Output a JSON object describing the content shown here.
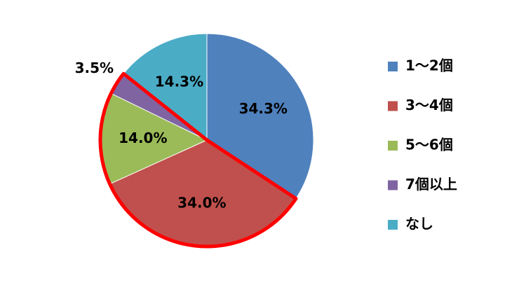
{
  "chart_data": {
    "type": "pie",
    "categories": [
      "1～2個",
      "3～4個",
      "5～6個",
      "7個以上",
      "なし"
    ],
    "values": [
      34.3,
      34.0,
      14.0,
      3.5,
      14.3
    ],
    "value_labels": [
      "34.3%",
      "34.0%",
      "14.0%",
      "3.5%",
      "14.3%"
    ],
    "colors": [
      "#4f81bd",
      "#c0504d",
      "#9bbb59",
      "#8064a2",
      "#4bacc6"
    ],
    "legend": "right"
  }
}
